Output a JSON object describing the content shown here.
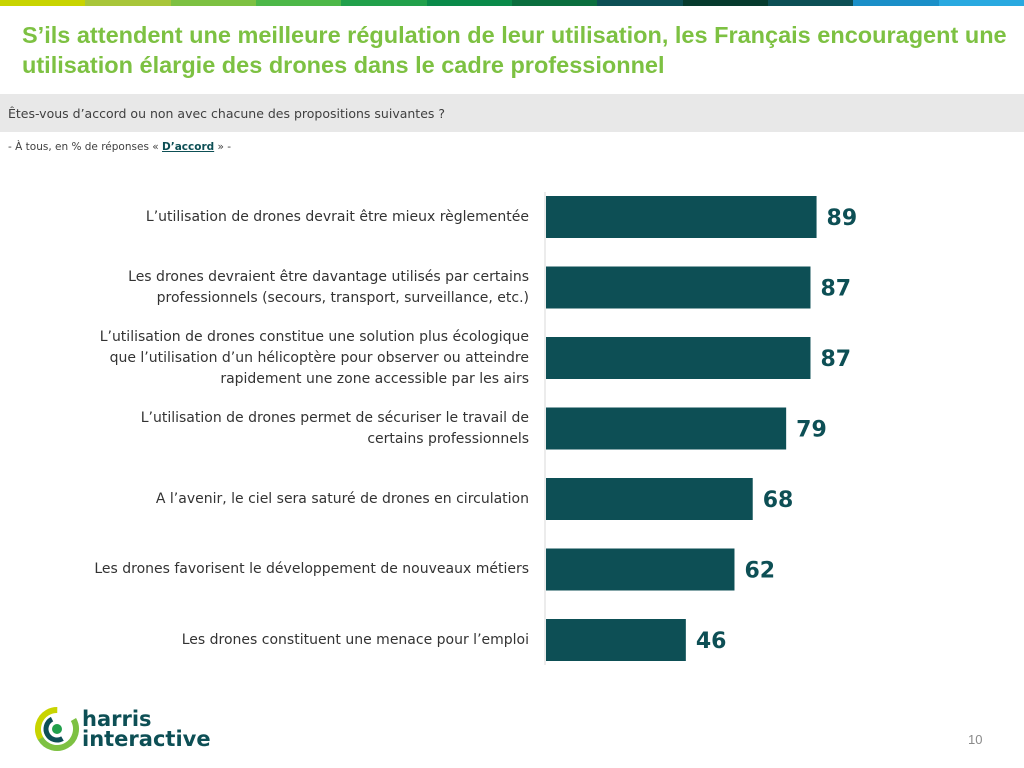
{
  "header": {
    "title": "S’ils attendent une meilleure régulation de leur utilisation, les Français encouragent une utilisation élargie des drones dans le cadre professionnel",
    "question": "Êtes-vous d’accord ou non avec chacune des propositions suivantes ?",
    "base_prefix": "- À tous, en % de réponses « ",
    "base_highlight": "D’accord",
    "base_suffix": " » -",
    "stripe_colors": [
      "#C8D400",
      "#A8C63A",
      "#7DC142",
      "#4DB848",
      "#21A04B",
      "#0A8A4A",
      "#0B6E3E",
      "#0D4F55",
      "#063B2E",
      "#0D4F55",
      "#1A8FC8",
      "#29A9E0"
    ]
  },
  "chart_data": {
    "type": "bar",
    "orientation": "horizontal",
    "categories": [
      "L’utilisation de drones devrait être mieux règlementée",
      "Les drones devraient être davantage utilisés par certains professionnels (secours, transport, surveillance, etc.)",
      "L’utilisation de drones constitue une solution plus écologique que l’utilisation d’un hélicoptère pour observer ou atteindre rapidement une zone accessible par les airs",
      "L’utilisation de drones permet de sécuriser le travail de certains professionnels",
      "A l’avenir, le ciel sera saturé de drones en circulation",
      "Les drones favorisent le développement de nouveaux métiers",
      "Les drones constituent une menace pour l’emploi"
    ],
    "category_lines": [
      [
        "L’utilisation de drones devrait être mieux règlementée"
      ],
      [
        "Les drones devraient être davantage utilisés par certains",
        "professionnels (secours, transport, surveillance, etc.)"
      ],
      [
        "L’utilisation de drones constitue une solution plus écologique",
        "que l’utilisation d’un hélicoptère pour observer ou atteindre",
        "rapidement une zone accessible par les airs"
      ],
      [
        "L’utilisation de drones permet de sécuriser le travail de",
        "certains professionnels"
      ],
      [
        "A l’avenir, le ciel sera saturé de drones en circulation"
      ],
      [
        "Les drones favorisent le développement de nouveaux métiers"
      ],
      [
        "Les drones constituent une menace pour l’emploi"
      ]
    ],
    "values": [
      89,
      87,
      87,
      79,
      68,
      62,
      46
    ],
    "xlim": [
      0,
      100
    ],
    "grid": false,
    "bar_color": "#0D4F55",
    "label_color": "#0D4F55"
  },
  "footer": {
    "logo_line1": "harris",
    "logo_line2": "interactive",
    "page_number": "10",
    "logo_colors": [
      "#7DC142",
      "#C8D400",
      "#0D4F55",
      "#21A04B"
    ]
  }
}
